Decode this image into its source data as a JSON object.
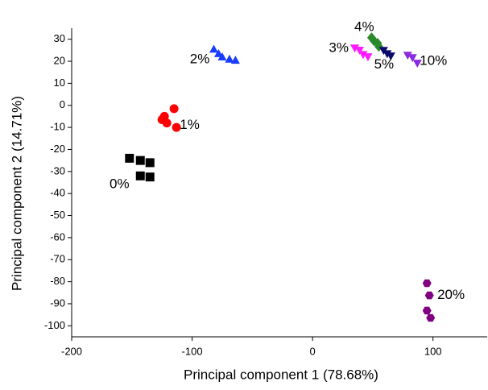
{
  "chart_data": {
    "type": "scatter",
    "x_label": "Principal component 1 (78.68%)",
    "y_label": "Principal component 2 (14.71%)",
    "xlim": [
      -200,
      145
    ],
    "xticks": [
      -200,
      -100,
      0,
      100
    ],
    "ylim": [
      -105,
      35
    ],
    "yticks": [
      -100,
      -90,
      -80,
      -70,
      -60,
      -50,
      -40,
      -30,
      -20,
      -10,
      0,
      10,
      20,
      30
    ],
    "series": [
      {
        "name": "0%",
        "color": "#000000",
        "marker": "square",
        "x": [
          -152,
          -143,
          -135,
          -143,
          -135
        ],
        "y": [
          -24,
          -25,
          -26,
          -32,
          -32.5
        ]
      },
      {
        "name": "1%",
        "color": "#ff0000",
        "marker": "circle",
        "x": [
          -115,
          -123,
          -121,
          -125,
          -113
        ],
        "y": [
          -1.5,
          -5,
          -8,
          -6.5,
          -10
        ]
      },
      {
        "name": "2%",
        "color": "#1a3cff",
        "marker": "triangle",
        "x": [
          -82,
          -78,
          -75,
          -69,
          -64
        ],
        "y": [
          25.5,
          23.5,
          22,
          21,
          20.5
        ]
      },
      {
        "name": "3%",
        "color": "#ff1aff",
        "marker": "triangle-down",
        "x": [
          35,
          39,
          42,
          46
        ],
        "y": [
          26,
          25,
          23,
          22
        ]
      },
      {
        "name": "4%",
        "color": "#2a8a2a",
        "marker": "diamond",
        "x": [
          49,
          51,
          54,
          55
        ],
        "y": [
          30.7,
          29.3,
          28.2,
          26.7
        ]
      },
      {
        "name": "5%",
        "color": "#0a0a6e",
        "marker": "triangle-down",
        "x": [
          59,
          62,
          65
        ],
        "y": [
          24.9,
          23.4,
          22.4
        ]
      },
      {
        "name": "10%",
        "color": "#8a2be2",
        "marker": "triangle-down",
        "x": [
          79,
          83,
          87
        ],
        "y": [
          22.7,
          21.6,
          19.1
        ]
      },
      {
        "name": "20%",
        "color": "#800080",
        "marker": "hexagon",
        "x": [
          95,
          97,
          95,
          98
        ],
        "y": [
          -80.7,
          -86.2,
          -93.1,
          -96.4
        ]
      }
    ]
  }
}
